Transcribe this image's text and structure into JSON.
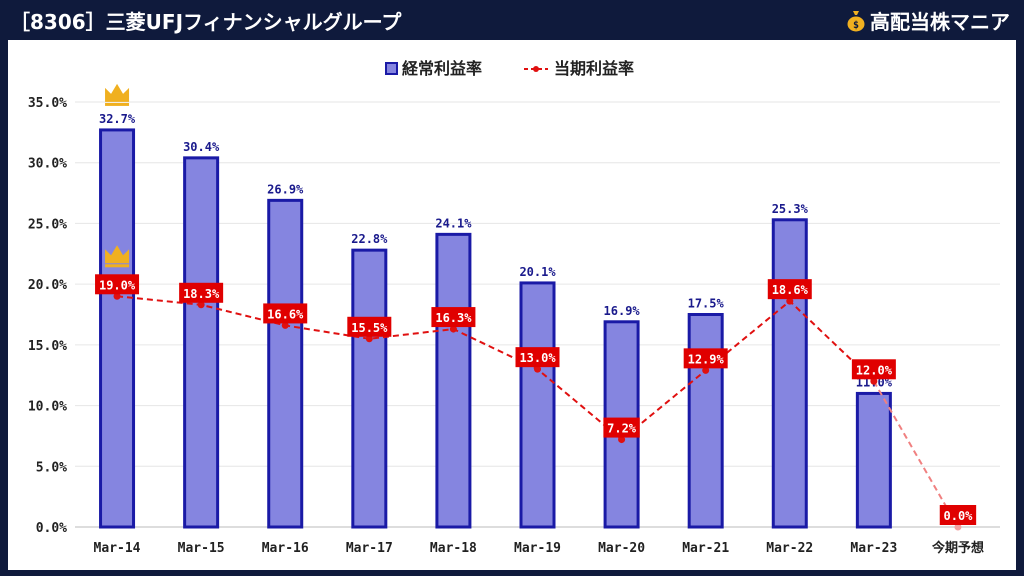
{
  "header": {
    "title": "［8306］三菱UFJフィナンシャルグループ",
    "brand": "高配当株マニア",
    "brand_icon": "money-bag-icon"
  },
  "chart_data": {
    "type": "bar",
    "categories": [
      "Mar-14",
      "Mar-15",
      "Mar-16",
      "Mar-17",
      "Mar-18",
      "Mar-19",
      "Mar-20",
      "Mar-21",
      "Mar-22",
      "Mar-23",
      "今期予想"
    ],
    "series": [
      {
        "name": "経常利益率",
        "kind": "bar",
        "color": "#8585e0",
        "border": "#1a1aa6",
        "values": [
          32.7,
          30.4,
          26.9,
          22.8,
          24.1,
          20.1,
          16.9,
          17.5,
          25.3,
          11.0,
          null
        ],
        "labels": [
          "32.7%",
          "30.4%",
          "26.9%",
          "22.8%",
          "24.1%",
          "20.1%",
          "16.9%",
          "17.5%",
          "25.3%",
          "11.0%",
          ""
        ]
      },
      {
        "name": "当期利益率",
        "kind": "line",
        "color": "#e01010",
        "values": [
          19.0,
          18.3,
          16.6,
          15.5,
          16.3,
          13.0,
          7.2,
          12.9,
          18.6,
          12.0,
          0.0
        ],
        "labels": [
          "19.0%",
          "18.3%",
          "16.6%",
          "15.5%",
          "16.3%",
          "13.0%",
          "7.2%",
          "12.9%",
          "18.6%",
          "12.0%",
          "0.0%"
        ]
      }
    ],
    "y_ticks": [
      "35.0%",
      "30.0%",
      "25.0%",
      "20.0%",
      "15.0%",
      "10.0%",
      "5.0%",
      "0.0%"
    ],
    "ylim": [
      0,
      35
    ],
    "legend": "top-center",
    "highlights": [
      {
        "series": "経常利益率",
        "category": "Mar-14",
        "icon": "crown-icon",
        "color": "#f0b020"
      },
      {
        "series": "当期利益率",
        "category": "Mar-14",
        "icon": "crown-icon",
        "color": "#f0b020"
      }
    ],
    "forecast_category": "今期予想"
  }
}
